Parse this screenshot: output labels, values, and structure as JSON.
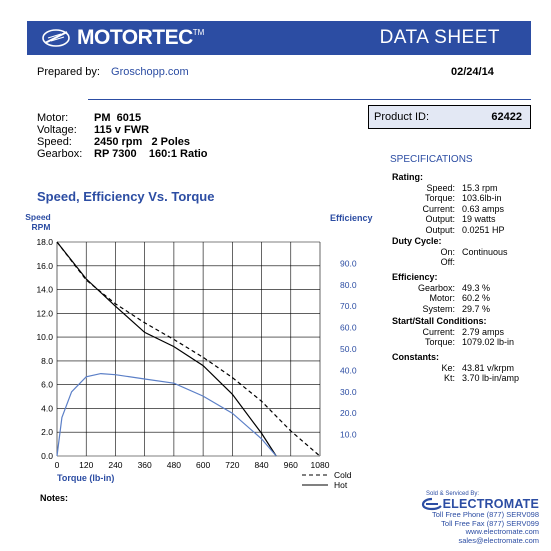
{
  "header": {
    "brand": "MOTORTEC",
    "trademark": "TM",
    "title": "DATA SHEET"
  },
  "prepared": {
    "label": "Prepared by:",
    "name": "Groschopp.com"
  },
  "date": "02/24/14",
  "motor_info": [
    {
      "label": "Motor:",
      "value": "PM  6015"
    },
    {
      "label": "Voltage:",
      "value": "115 v FWR"
    },
    {
      "label": "Speed:",
      "value": "2450 rpm   2 Poles"
    },
    {
      "label": "Gearbox:",
      "value": "RP 7300    160:1 Ratio"
    }
  ],
  "product": {
    "label": "Product ID:",
    "value": "62422"
  },
  "specifications": {
    "title": "SPECIFICATIONS",
    "groups": [
      {
        "head": "Rating:",
        "rows": [
          {
            "k": "Speed:",
            "v": "15.3 rpm"
          },
          {
            "k": "Torque:",
            "v": "103.6lb-in"
          },
          {
            "k": "Current:",
            "v": "0.63 amps"
          },
          {
            "k": "Output:",
            "v": "19 watts"
          },
          {
            "k": "Output:",
            "v": "0.0251 HP"
          }
        ]
      },
      {
        "head": "Duty Cycle:",
        "rows": [
          {
            "k": "On:",
            "v": "Continuous"
          },
          {
            "k": "Off:",
            "v": ""
          }
        ]
      },
      {
        "head": "Efficiency:",
        "rows": [
          {
            "k": "Gearbox:",
            "v": "49.3 %"
          },
          {
            "k": "Motor:",
            "v": "60.2 %"
          },
          {
            "k": "System:",
            "v": "29.7 %"
          }
        ]
      },
      {
        "head": "Start/Stall Conditions:",
        "rows": [
          {
            "k": "Current:",
            "v": "2.79 amps"
          },
          {
            "k": "Torque:",
            "v": "1079.02 lb-in"
          }
        ]
      },
      {
        "head": "Constants:",
        "rows": [
          {
            "k": "Ke:",
            "v": "43.81 v/krpm"
          },
          {
            "k": "Kt:",
            "v": "3.70 lb-in/amp"
          }
        ]
      }
    ]
  },
  "notes_label": "Notes:",
  "distributor": {
    "sold_by": "Sold & Serviced By:",
    "name": "ELECTROMATE",
    "lines": [
      "Toll Free Phone  (877) SERV098",
      "Toll Free Fax  (877) SERV099",
      "www.electromate.com",
      "sales@electromate.com"
    ]
  },
  "colors": {
    "brand_blue": "#2c4da3",
    "efficiency_blue": "#5b7fc7",
    "box_fill": "#e3e8f4"
  },
  "chart_data": {
    "type": "line",
    "title": "Speed, Efficiency Vs. Torque",
    "xlabel": "Torque  (lb-in)",
    "ylabel_left": "Speed RPM",
    "ylabel_right": "Efficiency",
    "xlim": [
      0,
      1080
    ],
    "ylim_left": [
      0,
      18
    ],
    "ylim_right": [
      0,
      100
    ],
    "x_ticks": [
      "0",
      "120",
      "240",
      "360",
      "480",
      "600",
      "720",
      "840",
      "960",
      "1080"
    ],
    "y_left_ticks": [
      "0.0",
      "2.0",
      "4.0",
      "6.0",
      "8.0",
      "10.0",
      "12.0",
      "14.0",
      "16.0",
      "18.0"
    ],
    "y_right_ticks": [
      "10.0",
      "20.0",
      "30.0",
      "40.0",
      "50.0",
      "60.0",
      "70.0",
      "80.0",
      "90.0"
    ],
    "grid": true,
    "legend": [
      "Cold",
      "Hot"
    ],
    "series": [
      {
        "name": "Cold",
        "axis": "left",
        "style": "dashed",
        "points": [
          [
            0,
            18
          ],
          [
            120,
            14.8
          ],
          [
            240,
            12.8
          ],
          [
            360,
            11.2
          ],
          [
            480,
            9.8
          ],
          [
            600,
            8.3
          ],
          [
            720,
            6.6
          ],
          [
            840,
            4.6
          ],
          [
            960,
            2.1
          ],
          [
            1079,
            0
          ]
        ]
      },
      {
        "name": "Hot",
        "axis": "left",
        "style": "solid",
        "points": [
          [
            0,
            18
          ],
          [
            120,
            14.9
          ],
          [
            240,
            12.6
          ],
          [
            360,
            10.4
          ],
          [
            480,
            9.2
          ],
          [
            600,
            7.6
          ],
          [
            720,
            5.2
          ],
          [
            840,
            1.9
          ],
          [
            900,
            0
          ]
        ]
      },
      {
        "axis": "right",
        "style": "solid-blue",
        "points": [
          [
            0,
            0
          ],
          [
            20,
            18
          ],
          [
            60,
            30
          ],
          [
            120,
            37
          ],
          [
            180,
            38.5
          ],
          [
            240,
            38
          ],
          [
            360,
            36
          ],
          [
            480,
            34
          ],
          [
            600,
            28
          ],
          [
            720,
            20
          ],
          [
            840,
            8
          ],
          [
            900,
            0
          ]
        ]
      }
    ]
  }
}
